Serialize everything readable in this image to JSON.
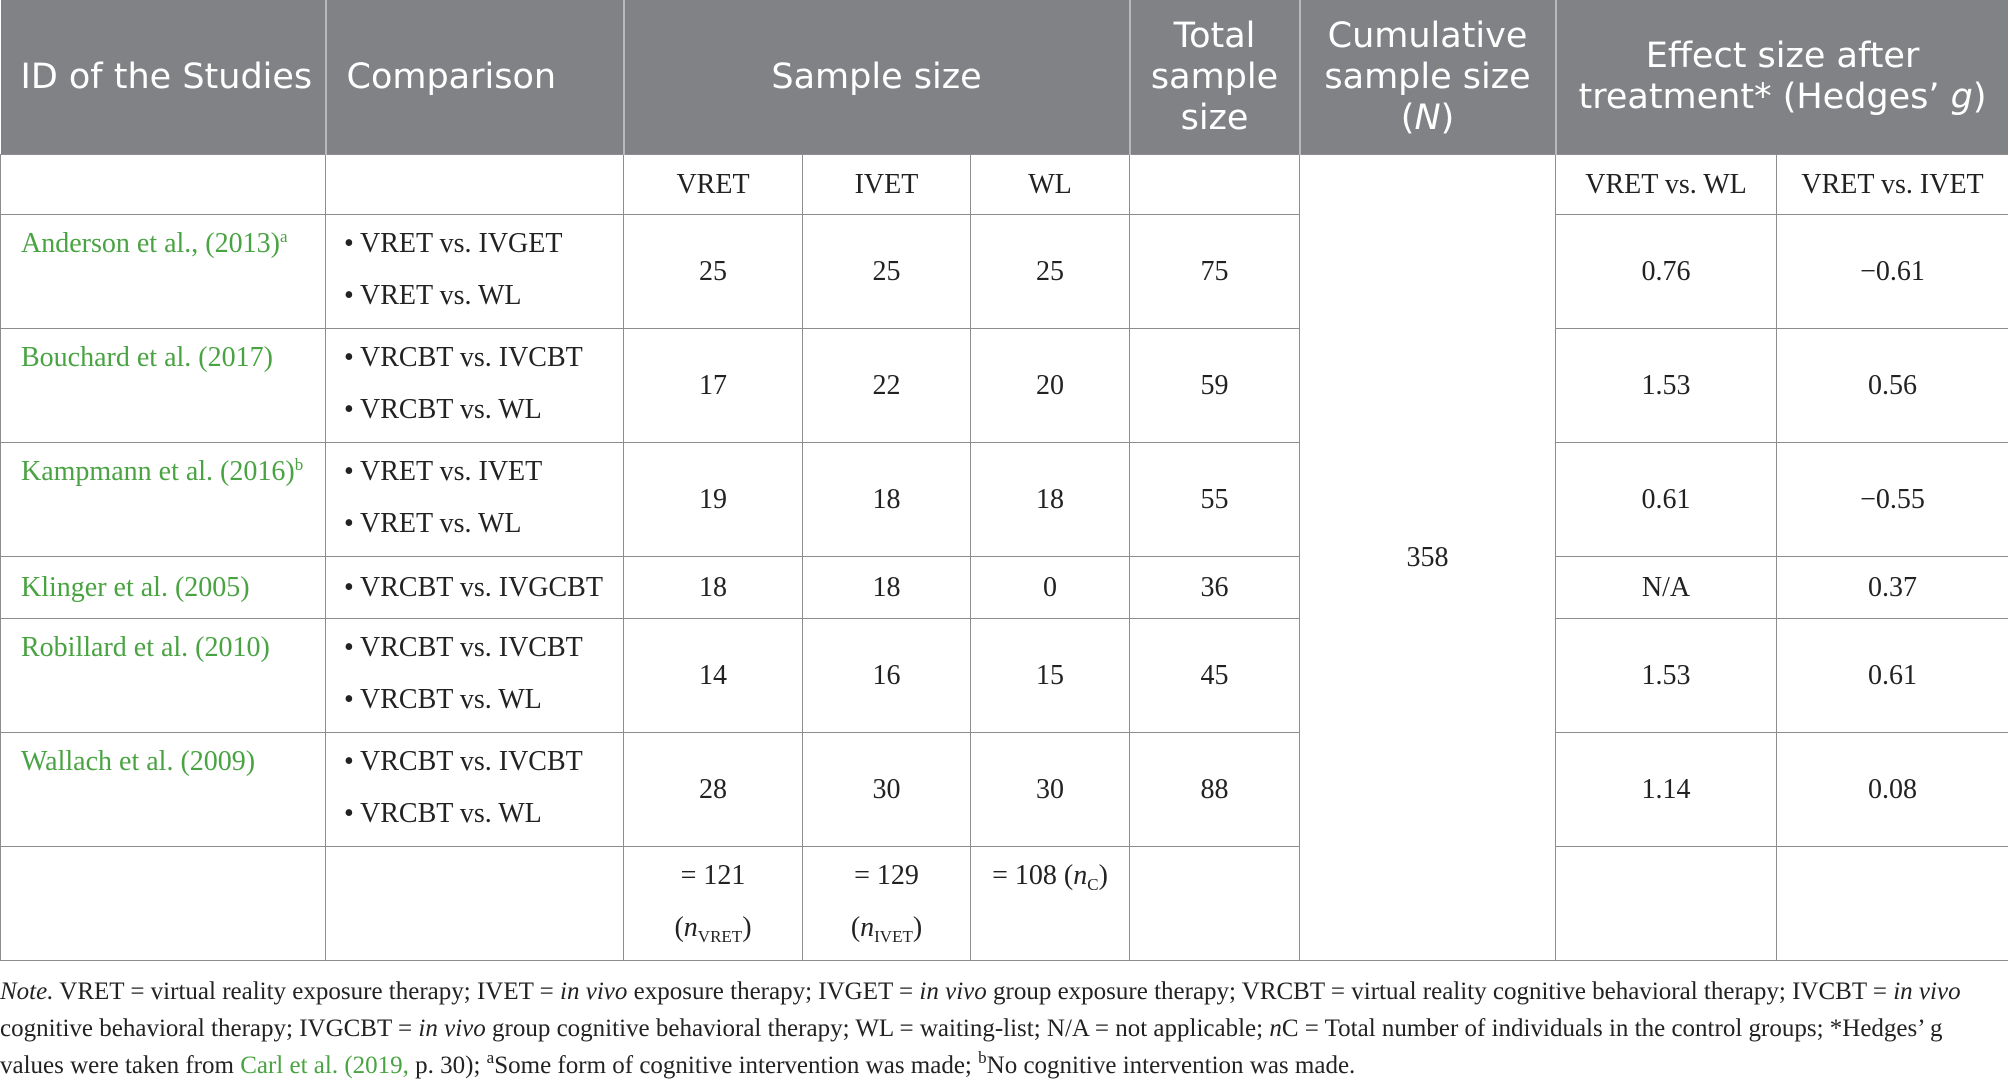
{
  "header": {
    "id": "ID of the Studies",
    "comparison": "Comparison",
    "sample_size": "Sample size",
    "total": "Total sample size",
    "cumulative_main": "Cumulative sample size",
    "cumulative_open": "(",
    "cumulative_n": "N",
    "cumulative_close": ")",
    "effect_main": "Effect size after treatment* (Hedges’ ",
    "effect_g": "g",
    "effect_close": ")"
  },
  "subheader": {
    "vret": "VRET",
    "ivet": "IVET",
    "wl": "WL",
    "vret_vs_wl": "VRET vs. WL",
    "vret_vs_ivet": "VRET vs. IVET"
  },
  "bullet": "•",
  "rows": [
    {
      "study": "Anderson et al., (2013)",
      "sup": "a",
      "comparisons": [
        "VRET vs. IVGET",
        "VRET vs. WL"
      ],
      "vret": "25",
      "ivet": "25",
      "wl": "25",
      "total": "75",
      "es_wl": "0.76",
      "es_ivet": "−0.61"
    },
    {
      "study": "Bouchard et al. (2017)",
      "sup": "",
      "comparisons": [
        "VRCBT vs. IVCBT",
        "VRCBT vs. WL"
      ],
      "vret": "17",
      "ivet": "22",
      "wl": "20",
      "total": "59",
      "es_wl": "1.53",
      "es_ivet": "0.56"
    },
    {
      "study": "Kampmann et al. (2016)",
      "sup": "b",
      "comparisons": [
        "VRET vs. IVET",
        "VRET vs. WL"
      ],
      "vret": "19",
      "ivet": "18",
      "wl": "18",
      "total": "55",
      "es_wl": "0.61",
      "es_ivet": "−0.55"
    },
    {
      "study": "Klinger et al. (2005)",
      "sup": "",
      "comparisons": [
        "VRCBT vs. IVGCBT"
      ],
      "vret": "18",
      "ivet": "18",
      "wl": "0",
      "total": "36",
      "es_wl": "N/A",
      "es_ivet": "0.37"
    },
    {
      "study": "Robillard et al. (2010)",
      "sup": "",
      "comparisons": [
        "VRCBT vs. IVCBT",
        "VRCBT vs. WL"
      ],
      "vret": "14",
      "ivet": "16",
      "wl": "15",
      "total": "45",
      "es_wl": "1.53",
      "es_ivet": "0.61"
    },
    {
      "study": "Wallach et al. (2009)",
      "sup": "",
      "comparisons": [
        "VRCBT vs. IVCBT",
        "VRCBT vs. WL"
      ],
      "vret": "28",
      "ivet": "30",
      "wl": "30",
      "total": "88",
      "es_wl": "1.14",
      "es_ivet": "0.08"
    }
  ],
  "cumulative_value": "358",
  "totals": {
    "vret_value": "= 121",
    "vret_label_n": "n",
    "vret_label_sub": "VRET",
    "ivet_value": "= 129",
    "ivet_label_n": "n",
    "ivet_label_sub": "IVET",
    "wl_value": "= 108 (",
    "wl_label_n": "n",
    "wl_label_sub": "C",
    "wl_close": ")"
  },
  "note": {
    "label": "Note.",
    "t1": " VRET = virtual reality exposure therapy; IVET = ",
    "i1": "in vivo",
    "t2": " exposure therapy; IVGET = ",
    "i2": "in vivo",
    "t3": " group exposure therapy; VRCBT = virtual reality cognitive behavioral therapy; IVCBT = ",
    "i3": "in vivo",
    "t4": " cognitive behavioral therapy; IVGCBT = ",
    "i4": "in vivo",
    "t5": " group cognitive behavioral therapy; WL = waiting-list; N/A = not applicable; ",
    "i5": "n",
    "t6": "C = Total number of individuals in the control groups; *Hedges’ g values were taken from ",
    "link": "Carl et al. (2019,",
    "t7": " p. 30); ",
    "sup_a": "a",
    "t8": "Some form of cognitive intervention was made; ",
    "sup_b": "b",
    "t9": "No cognitive intervention was made."
  }
}
